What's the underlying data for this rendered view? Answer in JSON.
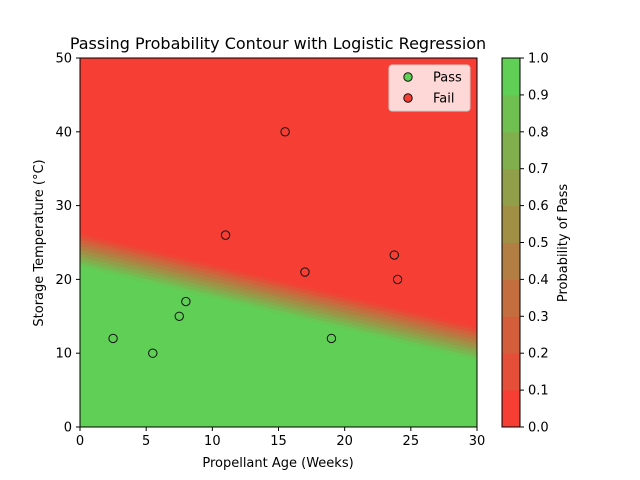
{
  "chart_data": {
    "type": "scatter",
    "title": "Passing Probability Contour with Logistic Regression",
    "xlabel": "Propellant Age (Weeks)",
    "ylabel": "Storage Temperature (°C)",
    "xlim": [
      0,
      30
    ],
    "ylim": [
      0,
      50
    ],
    "xticks": [
      "0",
      "5",
      "10",
      "15",
      "20",
      "25",
      "30"
    ],
    "yticks": [
      "0",
      "10",
      "20",
      "30",
      "40",
      "50"
    ],
    "grid": false,
    "legend_position": "top-right",
    "series": [
      {
        "name": "Pass",
        "color": "#5fcf55",
        "x": [
          2.5,
          5.5,
          7.5,
          8.0,
          19.0
        ],
        "y": [
          12,
          10,
          15,
          17,
          12
        ]
      },
      {
        "name": "Fail",
        "color": "#f63e34",
        "x": [
          11.0,
          15.5,
          17.0,
          23.75,
          24.0
        ],
        "y": [
          26,
          40,
          21,
          23.3,
          20
        ]
      }
    ],
    "contour": {
      "variable": "Probability of Pass",
      "p0_5_line": {
        "x": [
          0,
          30
        ],
        "y": [
          24.0,
          11.3
        ]
      },
      "levels": [
        0.0,
        0.1,
        0.2,
        0.3,
        0.4,
        0.5,
        0.6,
        0.7,
        0.8,
        0.9,
        1.0
      ],
      "low_color": "#f63e34",
      "high_color": "#5fcf55"
    },
    "colorbar": {
      "label": "Probability of Pass",
      "ticks": [
        "0.0",
        "0.1",
        "0.2",
        "0.3",
        "0.4",
        "0.5",
        "0.6",
        "0.7",
        "0.8",
        "0.9",
        "1.0"
      ]
    }
  }
}
